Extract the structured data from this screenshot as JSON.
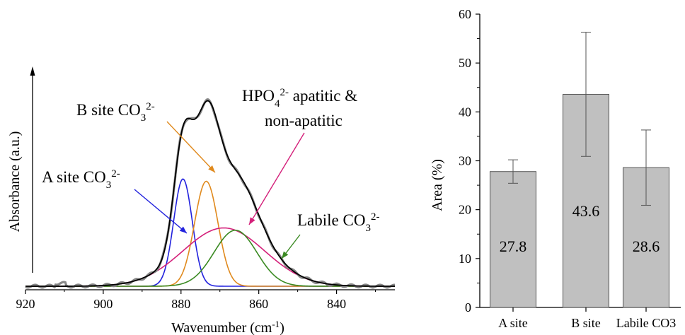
{
  "chart_data": [
    {
      "type": "line",
      "xlabel": "Wavenumber (cm",
      "xlabel_sup": "-1",
      "xlabel_end": ")",
      "ylabel": "Absorbance (a.u.)",
      "xlim": [
        920,
        825
      ],
      "x_ticks": [
        "920",
        "900",
        "880",
        "860",
        "840"
      ],
      "x_reversed": true,
      "y_ticks_shown": false,
      "grid": false,
      "colors": {
        "measured": "#888888",
        "fit": "#000000",
        "a_site": "#2222dd",
        "b_site": "#e08a1e",
        "hpo4": "#d4207a",
        "labile": "#3a8a22"
      },
      "series": [
        {
          "name": "A site CO3 2-",
          "shape": "gaussian",
          "center": 879.5,
          "sigma": 2.4,
          "height": 0.46
        },
        {
          "name": "B site CO3 2-",
          "shape": "gaussian",
          "center": 873.5,
          "sigma": 3.0,
          "height": 0.45
        },
        {
          "name": "HPO4 2- apatitic & non-apatitic",
          "shape": "gaussian",
          "center": 869.0,
          "sigma": 10.5,
          "height": 0.25
        },
        {
          "name": "Labile CO3 2-",
          "shape": "gaussian",
          "center": 866.0,
          "sigma": 5.5,
          "height": 0.24
        }
      ],
      "annotations": [
        {
          "text": "A site CO",
          "sub": "3",
          "sup": "2-",
          "series": "A site CO3 2-"
        },
        {
          "text": "B site CO",
          "sub": "3",
          "sup": "2-",
          "series": "B site CO3 2-"
        },
        {
          "text": "HPO",
          "sub": "4",
          "sup": "2-",
          "text_after": " apatitic &",
          "line2": "non-apatitic",
          "series": "HPO4 2- apatitic & non-apatitic"
        },
        {
          "text": "Labile CO",
          "sub": "3",
          "sup": "2-",
          "series": "Labile CO3 2-"
        }
      ]
    },
    {
      "type": "bar",
      "categories": [
        "A site",
        "B site",
        "Labile CO3"
      ],
      "values": [
        27.8,
        43.6,
        28.6
      ],
      "value_labels": [
        "27.8",
        "43.6",
        "28.6"
      ],
      "error": [
        2.4,
        12.7,
        7.7
      ],
      "ylabel": "Area (%)",
      "xlabel": "",
      "ylim": [
        0,
        60
      ],
      "y_ticks": [
        "0",
        "10",
        "20",
        "30",
        "40",
        "50",
        "60"
      ],
      "bar_color": "#c0c0c0",
      "grid": false
    }
  ]
}
